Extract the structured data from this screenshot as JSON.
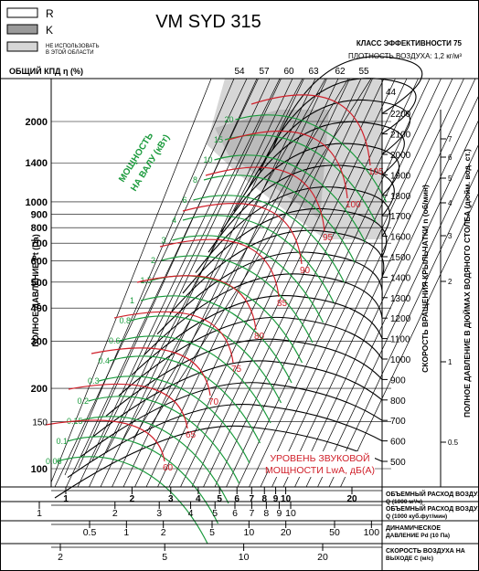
{
  "legend": [
    {
      "label": "R",
      "fill": "#ffffff"
    },
    {
      "label": "K",
      "fill": "#9a9a9a"
    },
    {
      "label": "НЕ ИСПОЛЬЗОВАТЬ В ЭТОЙ ОБЛАСТИ",
      "fill": "#d6d6d6"
    }
  ],
  "header": {
    "title": "VM SYD 315",
    "efficiency_class": "КЛАСС ЭФФЕКТИВНОСТИ 75",
    "air_density": "ПЛОТНОСТЬ ВОЗДУХА: 1,2 кг/м³",
    "total_efficiency": "ОБЩИЙ КПД η (%)"
  },
  "colors": {
    "green": "#1a9a3c",
    "red": "#d0202a",
    "gray_zone": "#d6d6d6",
    "dark_zone": "#9a9a9a"
  },
  "chart_data": {
    "type": "line",
    "ylabel_left": "ПОЛНОЕ ДАВЛЕНИЕ Pt (Па)",
    "y_pressure_ticks": [
      {
        "v": 100,
        "label": "100",
        "bold": true
      },
      {
        "v": 150,
        "label": "150",
        "bold": false
      },
      {
        "v": 200,
        "label": "200",
        "bold": true
      },
      {
        "v": 300,
        "label": "300",
        "bold": true
      },
      {
        "v": 400,
        "label": "400",
        "bold": true
      },
      {
        "v": 500,
        "label": "500",
        "bold": true
      },
      {
        "v": 600,
        "label": "600",
        "bold": true
      },
      {
        "v": 700,
        "label": "700",
        "bold": true
      },
      {
        "v": 800,
        "label": "800",
        "bold": true
      },
      {
        "v": 900,
        "label": "900",
        "bold": true
      },
      {
        "v": 1000,
        "label": "1000",
        "bold": true
      },
      {
        "v": 1400,
        "label": "1400",
        "bold": true
      },
      {
        "v": 2000,
        "label": "2000",
        "bold": true
      }
    ],
    "ylabel_speed": "СКОРОСТЬ ВРАЩЕНИЯ КРЫЛЬЧАТКИ n (об/мин)",
    "speed_ticks": [
      "500",
      "600",
      "700",
      "800",
      "900",
      "1000",
      "1100",
      "1200",
      "1300",
      "1400",
      "1500",
      "1600",
      "1700",
      "1800",
      "1900",
      "2000",
      "2100",
      "2200"
    ],
    "ylabel_inch": "ПОЛНОЕ ДАВЛЕНИЕ В ДЮЙМАХ ВОДЯНОГО СТОЛБА (дюйм. вод. ст.)",
    "inch_ticks": [
      "0.5",
      "1",
      "2",
      "3",
      "4",
      "5",
      "6",
      "7"
    ],
    "efficiency_ticks": [
      "54",
      "57",
      "60",
      "63",
      "62",
      "55"
    ],
    "efficiency_top_right": "44",
    "power_label": "МОЩНОСТЬ НА ВАЛУ (кВт)",
    "power_curves": [
      "0.08",
      "0.1",
      "0.15",
      "0.2",
      "0.3",
      "0.4",
      "0.6",
      "0.8",
      "1",
      "1.5",
      "2",
      "3",
      "4",
      "6",
      "8",
      "10",
      "15",
      "20"
    ],
    "sound_label": "УРОВЕНЬ ЗВУКОВОЙ МОЩНОСТИ LwA, дБ(A)",
    "sound_levels": [
      "60",
      "65",
      "70",
      "75",
      "80",
      "85",
      "90",
      "95",
      "100",
      "105"
    ],
    "x_flow_m3h": {
      "label": "ОБЪЕМНЫЙ РАСХОД ВОЗДУХА Q (1000 м³/ч)",
      "ticks": [
        {
          "v": 1,
          "label": "1"
        },
        {
          "v": 2,
          "label": "2"
        },
        {
          "v": 3,
          "label": "3"
        },
        {
          "v": 4,
          "label": "4"
        },
        {
          "v": 5,
          "label": "5"
        },
        {
          "v": 6,
          "label": "6"
        },
        {
          "v": 7,
          "label": "7"
        },
        {
          "v": 8,
          "label": "8"
        },
        {
          "v": 9,
          "label": "9"
        },
        {
          "v": 10,
          "label": "10"
        },
        {
          "v": 20,
          "label": "20"
        }
      ]
    },
    "x_flow_cfm": {
      "label": "ОБЪЕМНЫЙ РАСХОД ВОЗДУХА Q (1000 куб.фут/мин)",
      "ticks": [
        {
          "v": 1,
          "label": "1"
        },
        {
          "v": 2,
          "label": "2"
        },
        {
          "v": 3,
          "label": "3"
        },
        {
          "v": 4,
          "label": "4"
        },
        {
          "v": 5,
          "label": "5"
        },
        {
          "v": 6,
          "label": "6"
        },
        {
          "v": 7,
          "label": "7"
        },
        {
          "v": 8,
          "label": "8"
        },
        {
          "v": 9,
          "label": "9"
        },
        {
          "v": 10,
          "label": "10"
        }
      ]
    },
    "x_dynamic": {
      "label": "ДИНАМИЧЕСКОЕ ДАВЛЕНИЕ Pd (10 Па)",
      "ticks": [
        {
          "v": 0.5,
          "label": "0.5"
        },
        {
          "v": 1,
          "label": "1"
        },
        {
          "v": 2,
          "label": "2"
        },
        {
          "v": 5,
          "label": "5"
        },
        {
          "v": 10,
          "label": "10"
        },
        {
          "v": 20,
          "label": "20"
        },
        {
          "v": 50,
          "label": "50"
        },
        {
          "v": 100,
          "label": "100"
        }
      ]
    },
    "x_velocity": {
      "label": "СКОРОСТЬ ВОЗДУХА НА ВЫХОДЕ C (м/с)",
      "ticks": [
        {
          "v": 2,
          "label": "2"
        },
        {
          "v": 5,
          "label": "5"
        },
        {
          "v": 10,
          "label": "10"
        },
        {
          "v": 20,
          "label": "20"
        }
      ]
    }
  }
}
